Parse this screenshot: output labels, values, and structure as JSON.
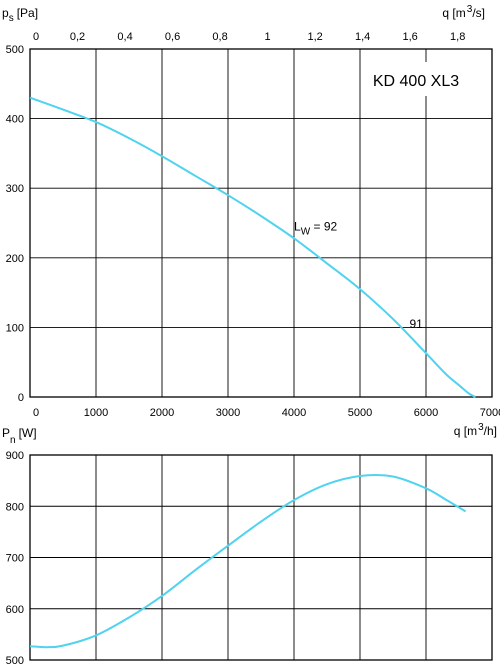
{
  "chart_data": [
    {
      "type": "line",
      "model_label": "KD 400 XL3",
      "ylabel": {
        "symbol": "p",
        "sub": "s",
        "unit": "[Pa]"
      },
      "xlabel_bottom": {
        "text": "q [m",
        "sup": "3",
        "tail": "/h]"
      },
      "xlabel_top": {
        "text": "q [m",
        "sup": "3",
        "tail": "/s]"
      },
      "xlim": [
        0,
        7000
      ],
      "ylim": [
        0,
        500
      ],
      "x_ticks": [
        0,
        1000,
        2000,
        3000,
        4000,
        5000,
        6000,
        7000
      ],
      "y_ticks": [
        0,
        100,
        200,
        300,
        400,
        500
      ],
      "top_ticks": [
        "0",
        "0,2",
        "0,4",
        "0,6",
        "0,8",
        "1",
        "1,2",
        "1,4",
        "1,6",
        "1,8"
      ],
      "top_tick_values": [
        0,
        0.2,
        0.4,
        0.6,
        0.8,
        1.0,
        1.2,
        1.4,
        1.6,
        1.8
      ],
      "grid": true,
      "series": [
        {
          "color": "#4fd3ee",
          "x": [
            0,
            500,
            1000,
            1500,
            2000,
            2500,
            3000,
            3500,
            4000,
            4500,
            5000,
            5500,
            6000,
            6300,
            6500,
            6650,
            6750
          ],
          "y": [
            430,
            413,
            395,
            372,
            346,
            318,
            290,
            260,
            228,
            192,
            155,
            112,
            63,
            33,
            17,
            5,
            0
          ]
        }
      ],
      "annotations": [
        {
          "text": "L",
          "sub": "W",
          "tail": " = 92",
          "x": 4000,
          "y": 245
        },
        {
          "text": "91",
          "x": 5750,
          "y": 105
        }
      ]
    },
    {
      "type": "line",
      "ylabel": {
        "symbol": "P",
        "sub": "n",
        "unit": "[W]"
      },
      "xlim": [
        0,
        7000
      ],
      "ylim": [
        500,
        900
      ],
      "y_ticks": [
        500,
        600,
        700,
        800,
        900
      ],
      "grid": true,
      "series": [
        {
          "color": "#4fd3ee",
          "x": [
            0,
            250,
            500,
            1000,
            1500,
            2000,
            2500,
            3000,
            3500,
            4000,
            4500,
            5000,
            5500,
            6000,
            6300,
            6600
          ],
          "y": [
            527,
            525,
            528,
            548,
            583,
            625,
            675,
            723,
            770,
            812,
            843,
            859,
            858,
            835,
            813,
            790
          ]
        }
      ]
    }
  ]
}
